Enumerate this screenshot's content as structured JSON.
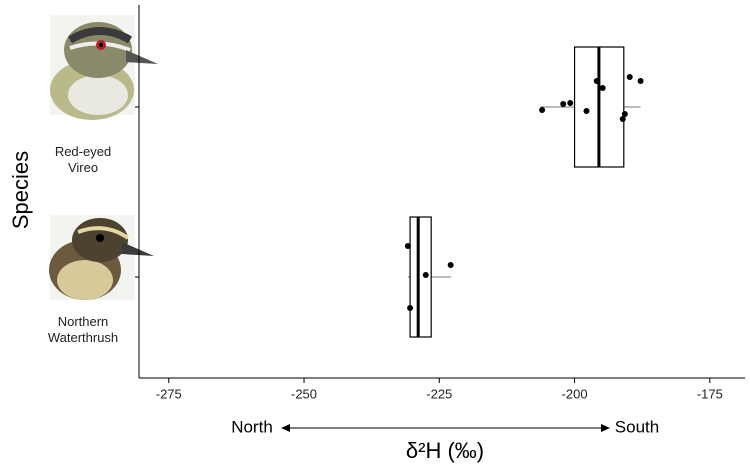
{
  "chart_data": {
    "type": "boxplot",
    "x_label": "δ²H (‰)",
    "y_label": "Species",
    "annotations": {
      "left": "North",
      "right": "South"
    },
    "categories": [
      "Red-eyed Vireo",
      "Northern Waterthrush"
    ],
    "series": [
      {
        "name": "Red-eyed Vireo",
        "q1": -200,
        "median": -195.5,
        "q3": -190.9,
        "whisker_low": -206.3,
        "whisker_high": -187.8,
        "points": [
          -206.0,
          -202.1,
          -200.8,
          -197.8,
          -195.9,
          -194.8,
          -191.1,
          -190.7,
          -189.8,
          -187.8
        ]
      },
      {
        "name": "Northern Waterthrush",
        "q1": -230.4,
        "median": -228.9,
        "q3": -226.5,
        "whisker_low": -230.8,
        "whisker_high": -222.8,
        "points": [
          -230.8,
          -227.5,
          -230.4,
          -222.9
        ]
      }
    ],
    "xlim": [
      -280.5,
      -168.5
    ],
    "xticks": [
      -275,
      -250,
      -225,
      -200,
      -175
    ],
    "color": "#000000"
  }
}
